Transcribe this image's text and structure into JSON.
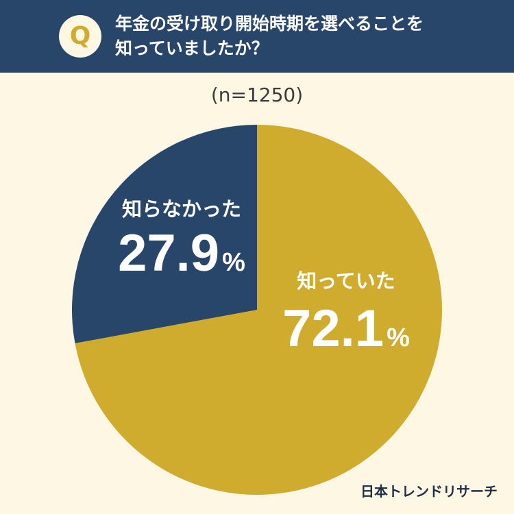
{
  "header": {
    "badge": "Q",
    "question_line1": "年金の受け取り開始時期を選べることを",
    "question_line2": "知っていましたか？"
  },
  "sample_size": "(n=1250)",
  "brand": "日本トレンドリサーチ",
  "colors": {
    "header_bg": "#27466a",
    "background": "#fdf7e3",
    "knew": "#cfab2e",
    "did_not_know": "#27466a",
    "label_text": "#ffffff"
  },
  "chart_data": {
    "type": "pie",
    "title": "",
    "slices": [
      {
        "label": "知っていた",
        "value": 72.1,
        "display": "72.1",
        "unit": "%",
        "color": "#cfab2e"
      },
      {
        "label": "知らなかった",
        "value": 27.9,
        "display": "27.9",
        "unit": "%",
        "color": "#27466a"
      }
    ],
    "start": "12 o'clock",
    "direction": "clockwise"
  }
}
